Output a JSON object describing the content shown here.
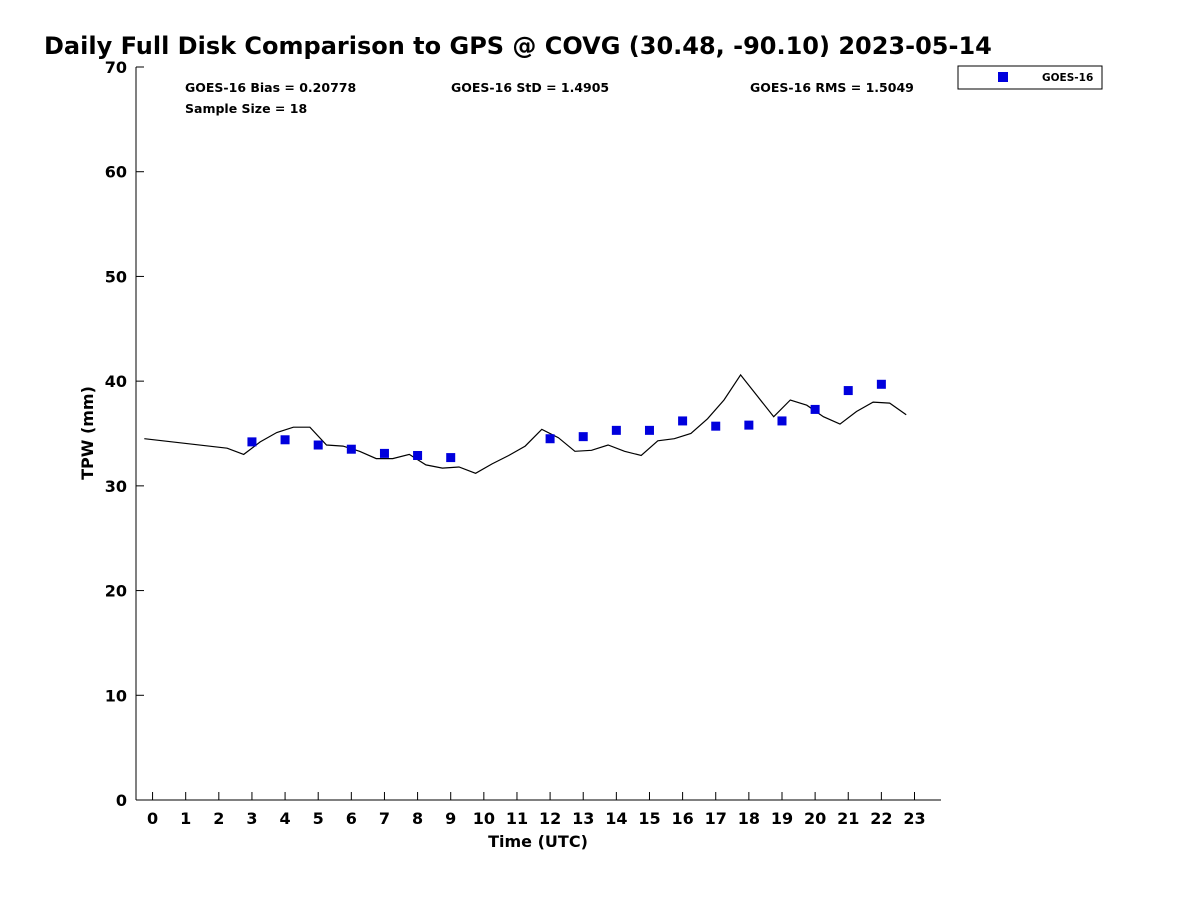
{
  "chart_data": {
    "type": "scatter",
    "title": "Daily Full Disk Comparison to GPS @ COVG (30.48, -90.10) 2023-05-14",
    "xlabel": "Time (UTC)",
    "ylabel": "TPW (mm)",
    "xlim": [
      -0.5,
      23.8
    ],
    "ylim": [
      0,
      70
    ],
    "x_ticks": [
      0,
      1,
      2,
      3,
      4,
      5,
      6,
      7,
      8,
      9,
      10,
      11,
      12,
      13,
      14,
      15,
      16,
      17,
      18,
      19,
      20,
      21,
      22,
      23
    ],
    "y_ticks": [
      0,
      10,
      20,
      30,
      40,
      50,
      60,
      70
    ],
    "grid": false,
    "legend": {
      "position": "outside-top-right",
      "entries": [
        "GOES-16"
      ]
    },
    "stats": {
      "bias": "GOES-16 Bias = 0.20778",
      "std": "GOES-16 StD = 1.4905",
      "rms": "GOES-16 RMS = 1.5049",
      "sample": "Sample Size = 18"
    },
    "series": [
      {
        "name": "GOES-16",
        "type": "scatter",
        "marker": "square",
        "color": "#0000dd",
        "x": [
          3,
          4,
          5,
          6,
          7,
          8,
          9,
          12,
          13,
          14,
          15,
          16,
          17,
          18,
          19,
          20,
          21,
          22
        ],
        "y": [
          34.2,
          34.4,
          33.9,
          33.5,
          33.1,
          32.9,
          32.7,
          34.5,
          34.7,
          35.3,
          35.3,
          36.2,
          35.7,
          35.8,
          36.2,
          37.3,
          39.1,
          39.7
        ]
      },
      {
        "type": "line",
        "color": "#000000",
        "x": [
          -0.25,
          2.25,
          2.75,
          3.25,
          3.75,
          4.25,
          4.75,
          5.25,
          5.75,
          6.25,
          6.75,
          7.25,
          7.75,
          8.25,
          8.75,
          9.25,
          9.75,
          10.25,
          10.75,
          11.25,
          11.75,
          12.25,
          12.75,
          13.25,
          13.75,
          14.25,
          14.75,
          15.25,
          15.75,
          16.25,
          16.75,
          17.25,
          17.75,
          18.25,
          18.75,
          19.25,
          19.75,
          20.25,
          20.75,
          21.25,
          21.75,
          22.25,
          22.75
        ],
        "y": [
          34.5,
          33.6,
          33.0,
          34.2,
          35.1,
          35.6,
          35.6,
          33.9,
          33.8,
          33.3,
          32.6,
          32.6,
          33.0,
          32.0,
          31.7,
          31.8,
          31.2,
          32.1,
          32.9,
          33.8,
          35.4,
          34.6,
          33.3,
          33.4,
          33.9,
          33.3,
          32.9,
          34.3,
          34.5,
          35.0,
          36.4,
          38.2,
          40.6,
          38.6,
          36.6,
          38.2,
          37.7,
          36.6,
          35.9,
          37.1,
          38.0,
          37.9,
          36.8
        ]
      }
    ]
  }
}
